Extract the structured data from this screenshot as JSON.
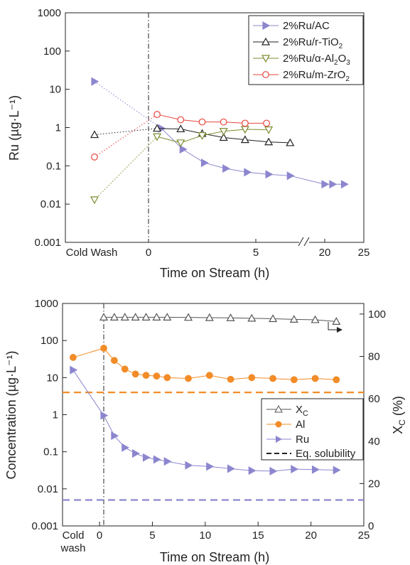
{
  "chart_data": [
    {
      "type": "scatter",
      "xlabel": "Time on Stream (h)",
      "ylabel": "Ru (µg·L⁻¹)",
      "yscale": "log",
      "ylim": [
        0.001,
        1000
      ],
      "x_axis_break": "between 5 and 20 h",
      "x_tick_labels": [
        "Cold Wash",
        "0",
        "5",
        "20",
        "25"
      ],
      "y_tick_labels": [
        "0.001",
        "0.01",
        "0.1",
        "1",
        "10",
        "100",
        "1000"
      ],
      "legend_position": "top-right",
      "series": [
        {
          "name": "2%Ru/AC",
          "label_main": "2%Ru/AC",
          "sub1": "",
          "mid": "",
          "sub2": "",
          "color": "#8c86cf",
          "marker": "triangle-right",
          "filled": true,
          "cold_wash": 16,
          "points": [
            [
              0.6,
              0.95
            ],
            [
              1.6,
              0.27
            ],
            [
              2.6,
              0.12
            ],
            [
              3.6,
              0.085
            ],
            [
              4.6,
              0.068
            ],
            [
              5.6,
              0.06
            ],
            [
              6.6,
              0.055
            ],
            [
              20,
              0.033
            ],
            [
              21,
              0.033
            ],
            [
              22.5,
              0.033
            ]
          ]
        },
        {
          "name": "2%Ru/r-TiO2",
          "label_main": "2%Ru/r-TiO",
          "sub1": "2",
          "mid": "",
          "sub2": "",
          "color": "#222222",
          "marker": "triangle-up",
          "filled": false,
          "cold_wash": 0.65,
          "points": [
            [
              0.4,
              0.95
            ],
            [
              1.5,
              0.92
            ],
            [
              2.5,
              0.7
            ],
            [
              3.5,
              0.55
            ],
            [
              4.5,
              0.48
            ],
            [
              5.6,
              0.42
            ],
            [
              6.6,
              0.4
            ]
          ]
        },
        {
          "name": "2%Ru/α-Al2O3",
          "label_main": "2%Ru/α-Al",
          "sub1": "2",
          "mid": "O",
          "sub2": "3",
          "color": "#7a8c2e",
          "marker": "triangle-down",
          "filled": false,
          "cold_wash": 0.013,
          "points": [
            [
              0.4,
              0.58
            ],
            [
              1.5,
              0.4
            ],
            [
              2.5,
              0.62
            ],
            [
              3.5,
              0.8
            ],
            [
              4.5,
              0.9
            ],
            [
              5.6,
              0.88
            ]
          ]
        },
        {
          "name": "2%Ru/m-ZrO2",
          "label_main": "2%Ru/m-ZrO",
          "sub1": "2",
          "mid": "",
          "sub2": "",
          "color": "#e8453c",
          "marker": "circle",
          "filled": false,
          "cold_wash": 0.17,
          "points": [
            [
              0.4,
              2.2
            ],
            [
              1.5,
              1.6
            ],
            [
              2.5,
              1.4
            ],
            [
              3.5,
              1.4
            ],
            [
              4.5,
              1.3
            ],
            [
              5.5,
              1.3
            ]
          ]
        }
      ]
    },
    {
      "type": "scatter",
      "xlabel": "Time on Stream (h)",
      "ylabel": "Concentration (µg·L⁻¹)",
      "y2label_main": "X",
      "y2label_sub": "C",
      "y2label_tail": " (%)",
      "yscale": "log",
      "ylim": [
        0.001,
        1000
      ],
      "y2lim": [
        0,
        105
      ],
      "xlim": [
        -3.5,
        25
      ],
      "x_tick_labels": [
        "0",
        "5",
        "10",
        "15",
        "20",
        "25"
      ],
      "x_cold_label_1": "Cold",
      "x_cold_label_2": "wash",
      "y_tick_labels": [
        "0.001",
        "0.01",
        "0.1",
        "1",
        "10",
        "100",
        "1000"
      ],
      "y2_tick_labels": [
        "0",
        "20",
        "40",
        "60",
        "80",
        "100"
      ],
      "legend_position": "center-right",
      "legend": {
        "xc_main": "X",
        "xc_sub": "C",
        "al": "Al",
        "ru": "Ru",
        "eq": "Eq. solubility"
      },
      "series": [
        {
          "name": "XC",
          "axis": "right",
          "color": "#555555",
          "marker": "triangle-up",
          "filled": false,
          "points": [
            [
              0.4,
              98.5
            ],
            [
              1.4,
              98.5
            ],
            [
              2.4,
              98.5
            ],
            [
              3.4,
              98.5
            ],
            [
              4.4,
              98.5
            ],
            [
              5.4,
              98.5
            ],
            [
              6.4,
              98.5
            ],
            [
              8.4,
              98.4
            ],
            [
              10.4,
              98.3
            ],
            [
              12.4,
              98.2
            ],
            [
              14.4,
              98
            ],
            [
              16.4,
              97.8
            ],
            [
              18.4,
              97.5
            ],
            [
              20.4,
              97.3
            ],
            [
              22.4,
              96.5
            ]
          ]
        },
        {
          "name": "Al",
          "axis": "left",
          "color": "#f28c28",
          "marker": "circle",
          "filled": true,
          "points": [
            [
              -2.5,
              35
            ],
            [
              0.4,
              62
            ],
            [
              1.4,
              29
            ],
            [
              2.4,
              17
            ],
            [
              3.4,
              12.5
            ],
            [
              4.4,
              11.5
            ],
            [
              5.4,
              11
            ],
            [
              6.4,
              10
            ],
            [
              8.4,
              9.5
            ],
            [
              10.4,
              11.5
            ],
            [
              12.4,
              9
            ],
            [
              14.4,
              10
            ],
            [
              16.4,
              9.5
            ],
            [
              18.4,
              8.8
            ],
            [
              20.4,
              9.5
            ],
            [
              22.4,
              8.8
            ]
          ]
        },
        {
          "name": "Ru",
          "axis": "left",
          "color": "#8c86cf",
          "marker": "triangle-right",
          "filled": true,
          "points": [
            [
              -2.5,
              16
            ],
            [
              0.4,
              0.95
            ],
            [
              1.4,
              0.27
            ],
            [
              2.4,
              0.13
            ],
            [
              3.4,
              0.09
            ],
            [
              4.4,
              0.07
            ],
            [
              5.4,
              0.062
            ],
            [
              6.4,
              0.055
            ],
            [
              8.4,
              0.043
            ],
            [
              10.4,
              0.04
            ],
            [
              12.4,
              0.035
            ],
            [
              14.4,
              0.031
            ],
            [
              16.4,
              0.03
            ],
            [
              18.4,
              0.034
            ],
            [
              20.4,
              0.033
            ],
            [
              22.4,
              0.032
            ]
          ]
        }
      ],
      "reference_lines": [
        {
          "name": "Al Eq. solubility",
          "y": 4,
          "color": "#f28c28"
        },
        {
          "name": "Ru Eq. solubility",
          "y": 0.005,
          "color": "#8c86cf"
        }
      ]
    }
  ]
}
